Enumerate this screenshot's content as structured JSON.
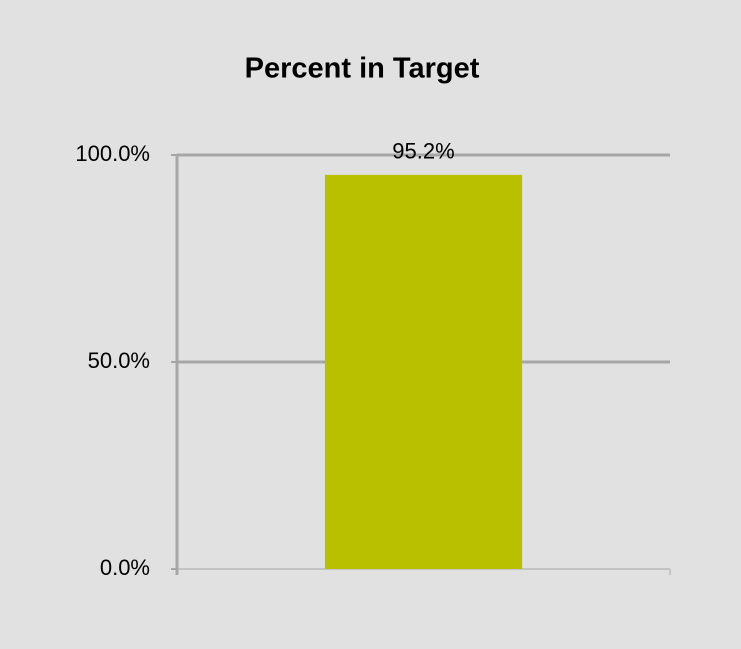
{
  "chart_data": {
    "type": "bar",
    "title": "Percent in Target",
    "categories": [
      null
    ],
    "values": [
      95.2
    ],
    "value_labels": [
      "95.2%"
    ],
    "color": "#b9c000",
    "ylim": [
      0,
      100
    ],
    "yticks": [
      {
        "value": 0,
        "label": "0.0%"
      },
      {
        "value": 50,
        "label": "50.0%"
      },
      {
        "value": 100,
        "label": "100.0%"
      }
    ],
    "grid": true
  }
}
